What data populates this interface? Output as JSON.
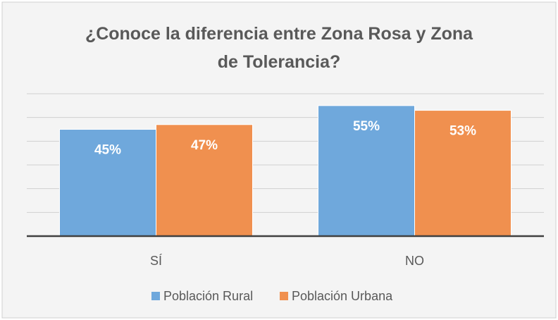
{
  "chart_data": {
    "type": "bar",
    "title": "¿Conoce la diferencia entre Zona Rosa y Zona de Tolerancia?",
    "categories": [
      "SÍ",
      "NO"
    ],
    "series": [
      {
        "name": "Población Rural",
        "color": "#6fa8dc",
        "values": [
          45,
          55
        ],
        "value_labels": [
          "45%",
          "55%"
        ]
      },
      {
        "name": "Población Urbana",
        "color": "#f0904f",
        "values": [
          47,
          53
        ],
        "value_labels": [
          "47%",
          "53%"
        ]
      }
    ],
    "ylim": [
      0,
      60
    ],
    "yticks": [
      0,
      10,
      20,
      30,
      40,
      50,
      60
    ],
    "grid": true,
    "legend": "bottom"
  }
}
